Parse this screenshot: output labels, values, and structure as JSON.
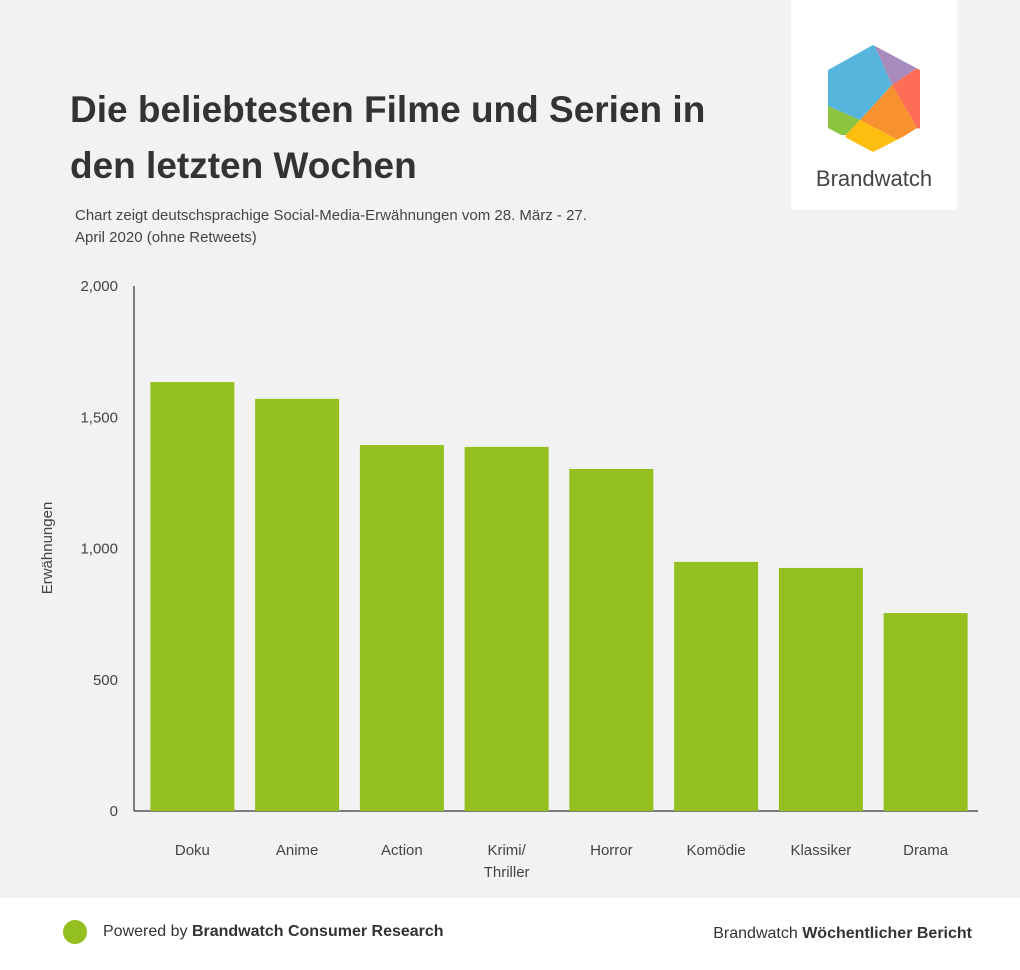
{
  "title": "Die beliebtesten Filme und Serien in den letzten Wochen",
  "subtitle": "Chart zeigt deutschsprachige Social-Media-Erwähnungen vom 28. März - 27. April 2020 (ohne Retweets)",
  "logo": {
    "text": "Brandwatch"
  },
  "footer": {
    "powered_prefix": "Powered by ",
    "powered_brand": "Brandwatch Consumer Research",
    "report_prefix": "Brandwatch ",
    "report_name": "Wöchentlicher Bericht"
  },
  "colors": {
    "bar": "#93c01f",
    "axis": "#555555"
  },
  "chart_data": {
    "type": "bar",
    "title": "Die beliebtesten Filme und Serien in den letzten Wochen",
    "xlabel": "",
    "ylabel": "Erwähnungen",
    "ylim": [
      0,
      2000
    ],
    "yticks": [
      0,
      500,
      1000,
      1500,
      2000
    ],
    "ytick_labels": [
      "0",
      "500",
      "1,000",
      "1,500",
      "2,000"
    ],
    "categories": [
      [
        "Doku"
      ],
      [
        "Anime"
      ],
      [
        "Action"
      ],
      [
        "Krimi/",
        "Thriller"
      ],
      [
        "Horror"
      ],
      [
        "Komödie"
      ],
      [
        "Klassiker"
      ],
      [
        "Drama"
      ]
    ],
    "values": [
      1634,
      1570,
      1394,
      1387,
      1303,
      949,
      926,
      754
    ],
    "grid": false
  }
}
